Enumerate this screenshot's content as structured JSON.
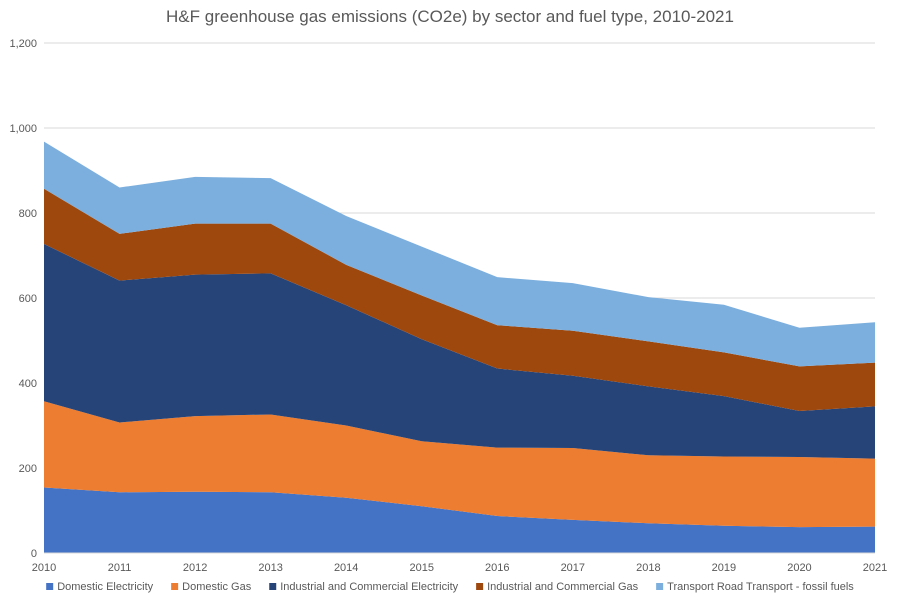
{
  "chart_data": {
    "type": "area",
    "stacked": true,
    "title": "H&F greenhouse gas emissions (CO2e) by sector and fuel type, 2010-2021",
    "xlabel": "",
    "ylabel": "",
    "categories": [
      "2010",
      "2011",
      "2012",
      "2013",
      "2014",
      "2015",
      "2016",
      "2017",
      "2018",
      "2019",
      "2020",
      "2021"
    ],
    "ylim": [
      0,
      1200
    ],
    "yticks": [
      0,
      200,
      400,
      600,
      800,
      1000,
      1200
    ],
    "ytick_labels": [
      "0",
      "200",
      "400",
      "600",
      "800",
      "1,000",
      "1,200"
    ],
    "gridlines": true,
    "legend_position": "bottom",
    "series": [
      {
        "name": "Domestic Electricity",
        "color": "#4472C4",
        "values": [
          154,
          143,
          144,
          143,
          130,
          110,
          87,
          78,
          70,
          64,
          61,
          62
        ]
      },
      {
        "name": "Domestic Gas",
        "color": "#ED7D31",
        "values": [
          203,
          164,
          178,
          183,
          170,
          153,
          161,
          169,
          160,
          163,
          165,
          160
        ]
      },
      {
        "name": "Industrial and Commercial Electricity",
        "color": "#264478",
        "values": [
          370,
          334,
          333,
          332,
          283,
          240,
          186,
          170,
          162,
          142,
          108,
          123
        ]
      },
      {
        "name": "Industrial and Commercial Gas",
        "color": "#9E480E",
        "values": [
          130,
          110,
          120,
          117,
          95,
          103,
          102,
          106,
          106,
          103,
          105,
          103
        ]
      },
      {
        "name": "Transport Road Transport - fossil fuels",
        "color": "#7CAFDD",
        "values": [
          111,
          109,
          110,
          107,
          115,
          115,
          113,
          112,
          104,
          112,
          91,
          95
        ]
      }
    ]
  }
}
